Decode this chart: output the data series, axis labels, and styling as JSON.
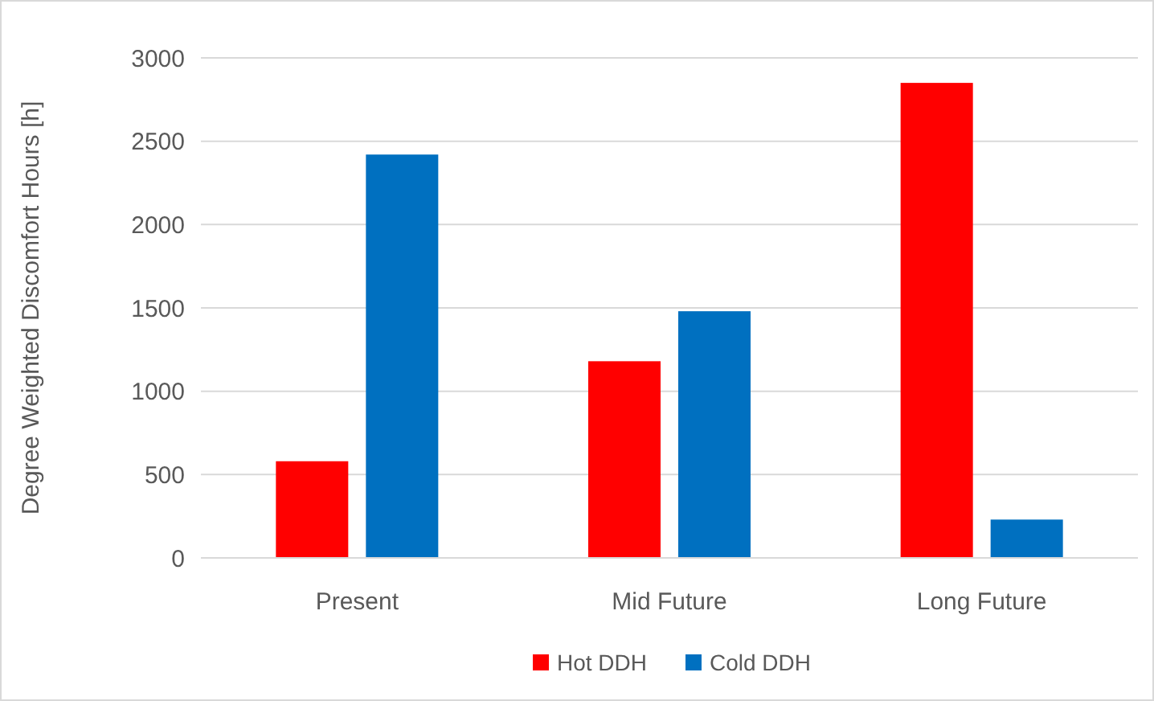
{
  "chart_data": {
    "type": "bar",
    "ylabel": "Degree Weighted Discomfort Hours  [h]",
    "categories": [
      "Present",
      "Mid Future",
      "Long Future"
    ],
    "series": [
      {
        "name": "Hot DDH",
        "color": "#ff0000",
        "values": [
          580,
          1180,
          2850
        ]
      },
      {
        "name": "Cold DDH",
        "color": "#0070c0",
        "values": [
          2420,
          1480,
          230
        ]
      }
    ],
    "ylim": [
      0,
      3000
    ],
    "yticks": [
      0,
      500,
      1000,
      1500,
      2000,
      2500,
      3000
    ],
    "grid": "y",
    "legend": "bottom"
  }
}
